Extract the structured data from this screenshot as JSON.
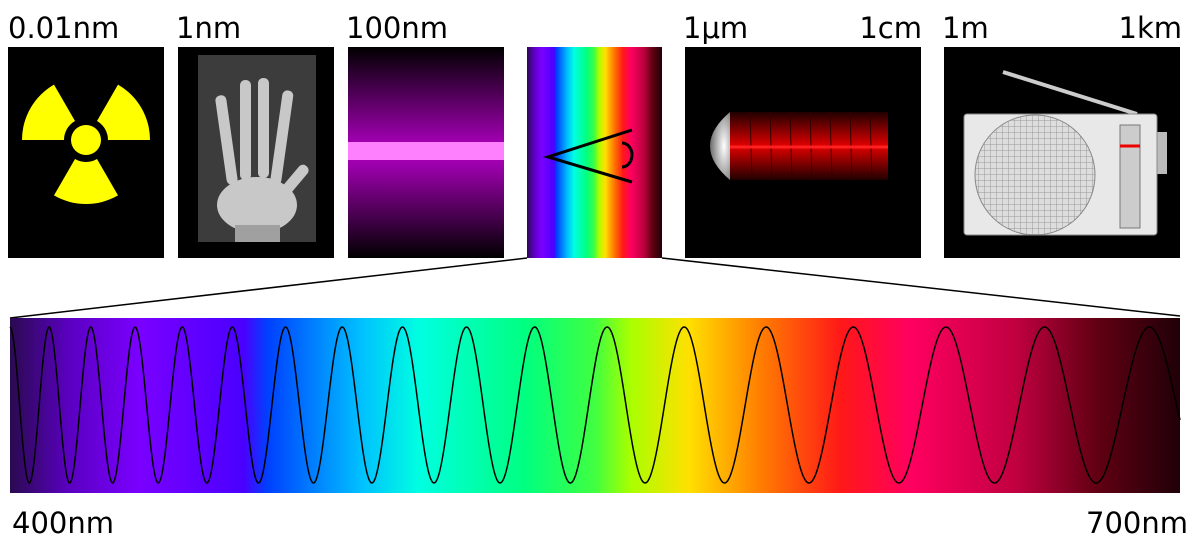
{
  "top_labels": [
    "0.01nm",
    "1nm",
    "100nm",
    "1μm",
    "1cm",
    "1m",
    "1km"
  ],
  "visible_range": {
    "start": "400nm",
    "end": "700nm"
  }
}
